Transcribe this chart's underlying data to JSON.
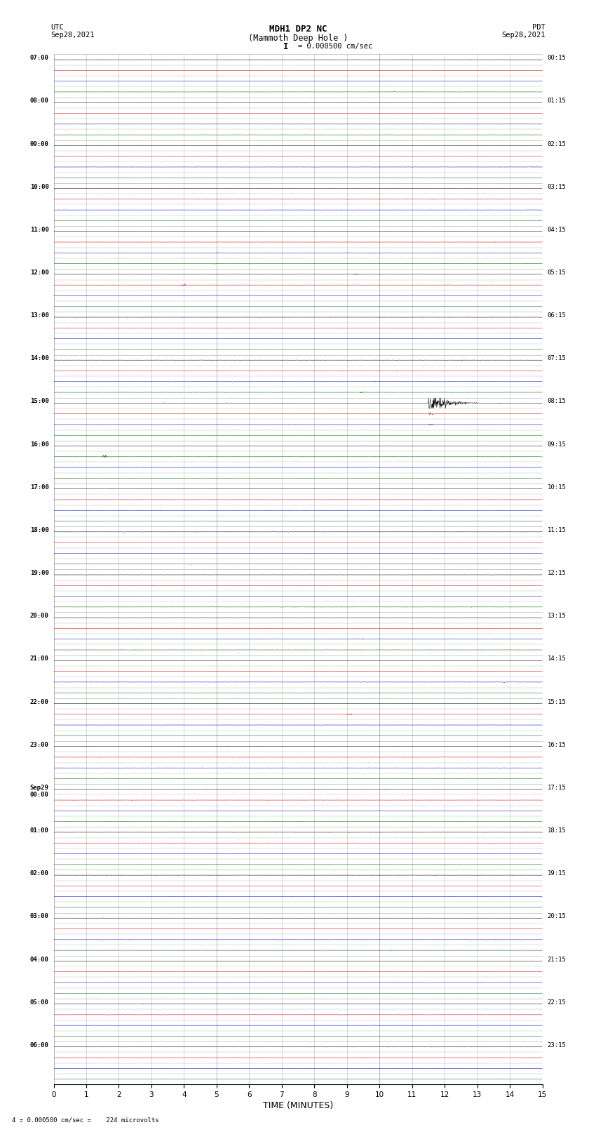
{
  "title_line1": "MDH1 DP2 NC",
  "title_line2": "(Mammoth Deep Hole )",
  "title_scale": "I = 0.000500 cm/sec",
  "left_label_top": "UTC",
  "left_label_date": "Sep28,2021",
  "right_label_top": "PDT",
  "right_label_date": "Sep28,2021",
  "xlabel": "TIME (MINUTES)",
  "bottom_note": "4 = 0.000500 cm/sec =    224 microvolts",
  "x_min": 0,
  "x_max": 15,
  "background_color": "#ffffff",
  "grid_color": "#888888",
  "fig_width": 8.5,
  "fig_height": 16.13,
  "utc_hours": [
    "07:00",
    "08:00",
    "09:00",
    "10:00",
    "11:00",
    "12:00",
    "13:00",
    "14:00",
    "15:00",
    "16:00",
    "17:00",
    "18:00",
    "19:00",
    "20:00",
    "21:00",
    "22:00",
    "23:00",
    "Sep29\n00:00",
    "01:00",
    "02:00",
    "03:00",
    "04:00",
    "05:00",
    "06:00"
  ],
  "pdt_labels": [
    "00:15",
    "01:15",
    "02:15",
    "03:15",
    "04:15",
    "05:15",
    "06:15",
    "07:15",
    "08:15",
    "09:15",
    "10:15",
    "11:15",
    "12:15",
    "13:15",
    "14:15",
    "15:15",
    "16:15",
    "17:15",
    "18:15",
    "19:15",
    "20:15",
    "21:15",
    "22:15",
    "23:15"
  ],
  "colors_cycle": [
    "#000000",
    "#cc0000",
    "#0000bb",
    "#006600"
  ],
  "trace_amplitude": 0.06,
  "noise_scale": 0.015,
  "samples_per_row": 1800
}
